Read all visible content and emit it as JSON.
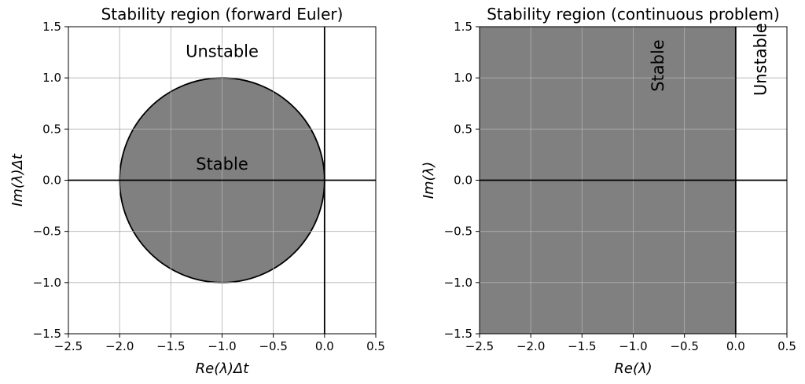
{
  "chart_data": [
    {
      "type": "area",
      "title": "Stability region (forward Euler)",
      "xlabel": "Re(λ)Δt",
      "ylabel": "Im(λ)Δt",
      "xlim": [
        -2.5,
        0.5
      ],
      "ylim": [
        -1.5,
        1.5
      ],
      "xticks": [
        -2.5,
        -2.0,
        -1.5,
        -1.0,
        -0.5,
        0.0,
        0.5
      ],
      "yticks": [
        -1.5,
        -1.0,
        -0.5,
        0.0,
        0.5,
        1.0,
        1.5
      ],
      "xtick_labels": [
        "−2.5",
        "−2.0",
        "−1.5",
        "−1.0",
        "−0.5",
        "0.0",
        "0.5"
      ],
      "ytick_labels": [
        "−1.5",
        "−1.0",
        "−0.5",
        "0.0",
        "0.5",
        "1.0",
        "1.5"
      ],
      "grid": true,
      "fill_color": "#808080",
      "region": {
        "shape": "circle",
        "center": [
          -1.0,
          0.0
        ],
        "radius": 1.0
      },
      "reference_lines": {
        "x": 0.0,
        "y": 0.0
      },
      "annotations": [
        {
          "text": "Unstable",
          "x": -1.0,
          "y": 1.25,
          "rotation": 0
        },
        {
          "text": "Stable",
          "x": -1.0,
          "y": 0.15,
          "rotation": 0
        }
      ]
    },
    {
      "type": "area",
      "title": "Stability region (continuous problem)",
      "xlabel": "Re(λ)",
      "ylabel": "Im(λ)",
      "xlim": [
        -2.5,
        0.5
      ],
      "ylim": [
        -1.5,
        1.5
      ],
      "xticks": [
        -2.5,
        -2.0,
        -1.5,
        -1.0,
        -0.5,
        0.0,
        0.5
      ],
      "yticks": [
        -1.5,
        -1.0,
        -0.5,
        0.0,
        0.5,
        1.0,
        1.5
      ],
      "xtick_labels": [
        "−2.5",
        "−2.0",
        "−1.5",
        "−1.0",
        "−0.5",
        "0.0",
        "0.5"
      ],
      "ytick_labels": [
        "−1.5",
        "−1.0",
        "−0.5",
        "0.0",
        "0.5",
        "1.0",
        "1.5"
      ],
      "grid": true,
      "fill_color": "#808080",
      "region": {
        "shape": "half-plane",
        "x_max": 0.0
      },
      "reference_lines": {
        "x": 0.0,
        "y": 0.0
      },
      "annotations": [
        {
          "text": "Stable",
          "x": -0.75,
          "y": 1.12,
          "rotation": -90
        },
        {
          "text": "Unstable",
          "x": 0.25,
          "y": 1.18,
          "rotation": -90
        }
      ]
    }
  ]
}
